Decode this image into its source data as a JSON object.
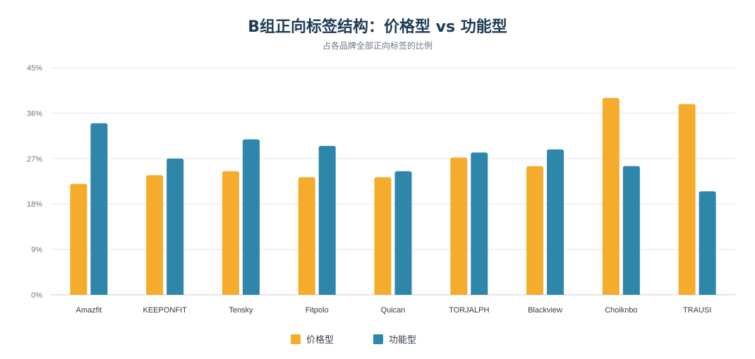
{
  "chart_data": {
    "type": "bar",
    "title": "B组正向标签结构：价格型 vs 功能型",
    "subtitle": "占各品牌全部正向标签的比例",
    "categories": [
      "Amazfit",
      "KEEPONFIT",
      "Tensky",
      "Fitpolo",
      "Quican",
      "TORJALPH",
      "Blackview",
      "Choiknbo",
      "TRAUSI"
    ],
    "series": [
      {
        "name": "价格型",
        "color": "#f5ac2d",
        "values": [
          22.0,
          23.7,
          24.5,
          23.3,
          23.3,
          27.2,
          25.5,
          39.0,
          37.8
        ]
      },
      {
        "name": "功能型",
        "color": "#2e86ab",
        "values": [
          34.0,
          27.0,
          30.8,
          29.5,
          24.5,
          28.2,
          28.8,
          25.5,
          20.5
        ]
      }
    ],
    "yticks": [
      "0%",
      "9%",
      "18%",
      "27%",
      "36%",
      "45%"
    ],
    "ylim": [
      0,
      45
    ],
    "grid": true,
    "legend": "bottom-center"
  }
}
